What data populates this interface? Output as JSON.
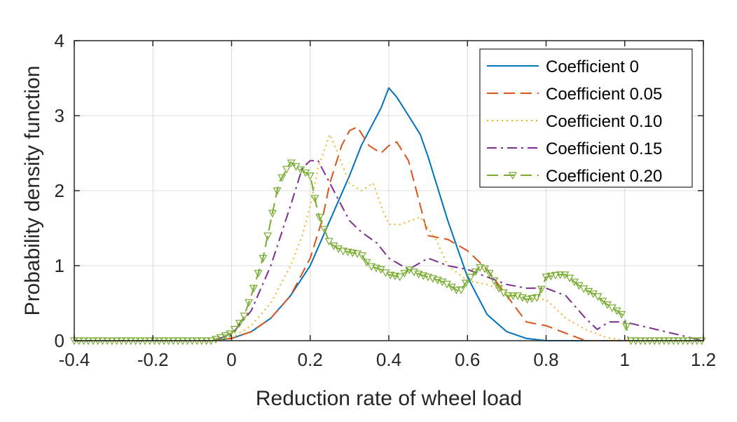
{
  "chart_data": {
    "type": "line",
    "title": "",
    "xlabel": "Reduction rate of  wheel load",
    "ylabel": "Probability density function",
    "xlim": [
      -0.4,
      1.2
    ],
    "ylim": [
      0,
      4
    ],
    "xticks": [
      -0.4,
      -0.2,
      0,
      0.2,
      0.4,
      0.6,
      0.8,
      1,
      1.2
    ],
    "xtick_labels": [
      "-0.4",
      "-0.2",
      "0",
      "0.2",
      "0.4",
      "0.6",
      "0.8",
      "1",
      "1.2"
    ],
    "yticks": [
      0,
      1,
      2,
      3,
      4
    ],
    "ytick_labels": [
      "0",
      "1",
      "2",
      "3",
      "4"
    ],
    "grid": true,
    "legend_position": "top-right",
    "series": [
      {
        "name": "Coefficient  0",
        "color": "#0072BD",
        "style": "solid",
        "marker": "none",
        "x": [
          -0.4,
          -0.05,
          0,
          0.05,
          0.1,
          0.15,
          0.2,
          0.25,
          0.3,
          0.33,
          0.36,
          0.38,
          0.4,
          0.42,
          0.45,
          0.48,
          0.5,
          0.55,
          0.6,
          0.65,
          0.7,
          0.75,
          0.8,
          1.2
        ],
        "y": [
          0,
          0,
          0.03,
          0.12,
          0.3,
          0.6,
          1.0,
          1.6,
          2.2,
          2.6,
          2.9,
          3.1,
          3.37,
          3.25,
          3.0,
          2.75,
          2.45,
          1.6,
          0.85,
          0.35,
          0.12,
          0.03,
          0.0,
          0.0
        ]
      },
      {
        "name": "Coefficient 0.05",
        "color": "#D95319",
        "style": "dashed",
        "marker": "none",
        "x": [
          -0.4,
          -0.05,
          0,
          0.05,
          0.1,
          0.15,
          0.2,
          0.23,
          0.25,
          0.28,
          0.3,
          0.32,
          0.35,
          0.38,
          0.4,
          0.42,
          0.45,
          0.48,
          0.5,
          0.55,
          0.6,
          0.65,
          0.7,
          0.75,
          0.8,
          0.85,
          0.9,
          1.2
        ],
        "y": [
          0,
          0,
          0.03,
          0.12,
          0.3,
          0.6,
          1.1,
          1.6,
          2.1,
          2.6,
          2.8,
          2.85,
          2.6,
          2.5,
          2.6,
          2.65,
          2.4,
          1.8,
          1.4,
          1.35,
          1.2,
          0.95,
          0.6,
          0.25,
          0.2,
          0.1,
          0.0,
          0.0
        ]
      },
      {
        "name": "Coefficient 0.10",
        "color": "#EDB120",
        "style": "dotted",
        "marker": "none",
        "x": [
          -0.4,
          -0.05,
          0,
          0.05,
          0.1,
          0.15,
          0.18,
          0.2,
          0.22,
          0.25,
          0.27,
          0.3,
          0.33,
          0.36,
          0.38,
          0.4,
          0.43,
          0.48,
          0.52,
          0.55,
          0.6,
          0.65,
          0.7,
          0.75,
          0.8,
          0.85,
          0.9,
          0.95,
          1.0,
          1.2
        ],
        "y": [
          0,
          0,
          0.04,
          0.2,
          0.5,
          1.0,
          1.4,
          1.8,
          2.3,
          2.75,
          2.5,
          2.1,
          2.0,
          2.1,
          1.8,
          1.55,
          1.55,
          1.65,
          1.35,
          1.0,
          0.8,
          0.75,
          0.65,
          0.55,
          0.55,
          0.3,
          0.15,
          0.05,
          0.0,
          0.0
        ]
      },
      {
        "name": "Coefficient 0.15",
        "color": "#7E2F8E",
        "style": "dashdot",
        "marker": "none",
        "x": [
          -0.4,
          -0.05,
          0,
          0.05,
          0.1,
          0.15,
          0.18,
          0.2,
          0.22,
          0.25,
          0.28,
          0.3,
          0.33,
          0.37,
          0.4,
          0.45,
          0.5,
          0.55,
          0.6,
          0.65,
          0.7,
          0.75,
          0.8,
          0.85,
          0.9,
          0.93,
          0.96,
          1.0,
          1.2
        ],
        "y": [
          0,
          0,
          0.08,
          0.4,
          1.0,
          1.8,
          2.3,
          2.4,
          2.4,
          2.1,
          1.8,
          1.6,
          1.45,
          1.3,
          1.1,
          0.95,
          1.1,
          1.0,
          0.95,
          0.85,
          0.75,
          0.7,
          0.7,
          0.6,
          0.3,
          0.15,
          0.25,
          0.25,
          0.0
        ]
      },
      {
        "name": "Coefficient 0.20",
        "color": "#77AC30",
        "style": "dashed",
        "marker": "triangle-down",
        "x": [
          -0.4,
          -0.05,
          0,
          0.03,
          0.05,
          0.08,
          0.1,
          0.12,
          0.15,
          0.17,
          0.2,
          0.22,
          0.25,
          0.28,
          0.3,
          0.33,
          0.35,
          0.38,
          0.4,
          0.43,
          0.45,
          0.48,
          0.5,
          0.53,
          0.55,
          0.58,
          0.6,
          0.63,
          0.65,
          0.68,
          0.7,
          0.73,
          0.75,
          0.78,
          0.8,
          0.83,
          0.85,
          0.88,
          0.9,
          0.93,
          0.95,
          0.98,
          1.0,
          1.01,
          1.2
        ],
        "y": [
          0,
          0,
          0.1,
          0.3,
          0.6,
          1.1,
          1.6,
          2.1,
          2.38,
          2.3,
          2.2,
          1.7,
          1.3,
          1.2,
          1.18,
          1.15,
          1.0,
          0.95,
          0.88,
          0.85,
          0.95,
          0.88,
          0.85,
          0.8,
          0.75,
          0.65,
          0.8,
          0.98,
          0.95,
          0.7,
          0.6,
          0.6,
          0.55,
          0.58,
          0.85,
          0.88,
          0.88,
          0.75,
          0.68,
          0.6,
          0.5,
          0.4,
          0.32,
          0.0,
          0.0
        ]
      }
    ]
  }
}
